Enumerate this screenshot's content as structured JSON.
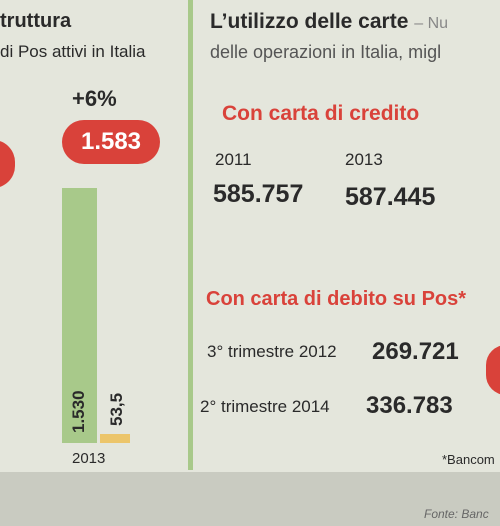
{
  "left_panel": {
    "title": "truttura",
    "subtitle": "di Pos attivi in Italia",
    "change": "+6%",
    "highlight": {
      "value": 1583,
      "label": "1.583"
    },
    "bars": [
      {
        "value": 1530,
        "label": "1.530"
      },
      {
        "value": 53.5,
        "label": "53,5"
      }
    ],
    "year": "2013"
  },
  "right_panel": {
    "title": "L’utilizzo delle carte",
    "title_suffix": "– Nu",
    "subtitle": "delle operazioni in Italia, migl",
    "credit": {
      "heading": "Con carta di credito",
      "periods": [
        "2011",
        "2013"
      ],
      "values": [
        {
          "value": 585757,
          "label": "585.757"
        },
        {
          "value": 587445,
          "label": "587.445"
        }
      ]
    },
    "debit": {
      "heading": "Con carta di debito su Pos*",
      "rows": [
        {
          "period": "3° trimestre 2012",
          "value": {
            "value": 269721,
            "label": "269.721"
          }
        },
        {
          "period": "2° trimestre 2014",
          "value": {
            "value": 336783,
            "label": "336.783"
          }
        }
      ]
    },
    "footnote": "*Bancom"
  },
  "footer": {
    "source": "Fonte: Banc"
  }
}
